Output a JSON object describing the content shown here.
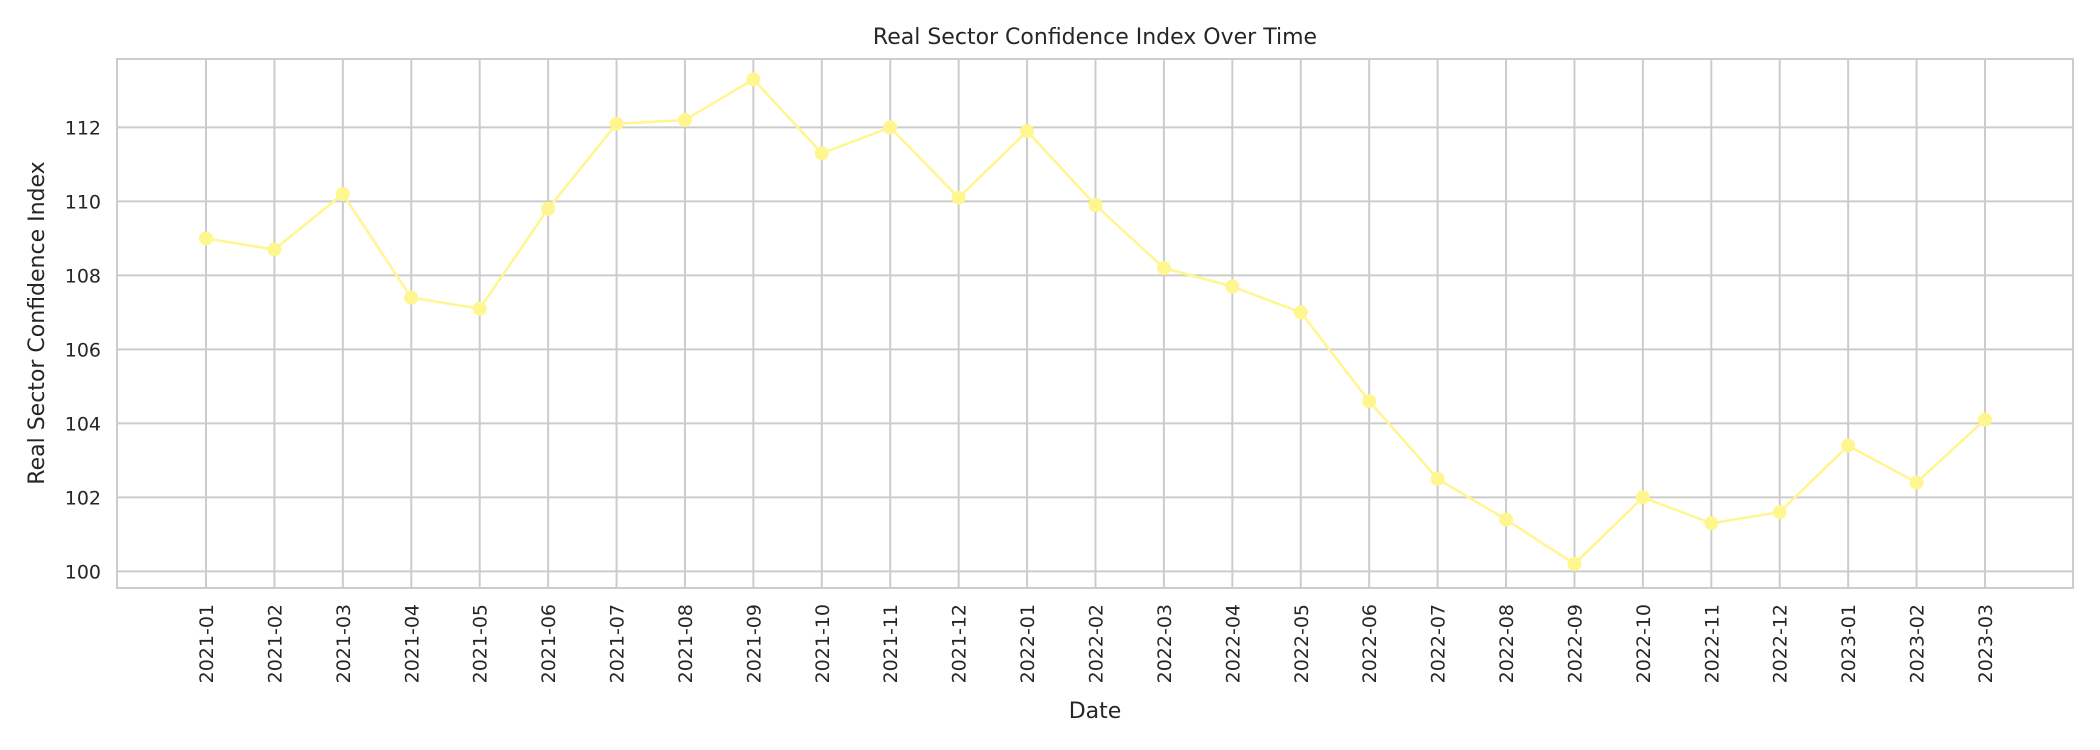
{
  "chart_data": {
    "type": "line",
    "title": "Real Sector Confidence Index Over Time",
    "xlabel": "Date",
    "ylabel": "Real Sector Confidence Index",
    "categories": [
      "2021-01",
      "2021-02",
      "2021-03",
      "2021-04",
      "2021-05",
      "2021-06",
      "2021-07",
      "2021-08",
      "2021-09",
      "2021-10",
      "2021-11",
      "2021-12",
      "2022-01",
      "2022-02",
      "2022-03",
      "2022-04",
      "2022-05",
      "2022-06",
      "2022-07",
      "2022-08",
      "2022-09",
      "2022-10",
      "2022-11",
      "2022-12",
      "2023-01",
      "2023-02",
      "2023-03"
    ],
    "series": [
      {
        "values": [
          109.0,
          108.7,
          110.2,
          107.4,
          107.1,
          109.8,
          112.1,
          112.2,
          113.3,
          111.3,
          112.0,
          110.1,
          111.9,
          109.9,
          108.2,
          107.7,
          107.0,
          104.6,
          102.5,
          101.4,
          100.2,
          102.0,
          101.3,
          101.6,
          103.4,
          102.4,
          104.1
        ],
        "color": "#fff68f"
      }
    ],
    "yticks": [
      100,
      102,
      104,
      106,
      108,
      110,
      112
    ],
    "ylim": [
      99.55,
      113.85
    ],
    "grid": true,
    "marker": "circle",
    "colors": {
      "grid": "#cccccc",
      "frame": "#cccccc",
      "line": "#fff68f"
    }
  }
}
